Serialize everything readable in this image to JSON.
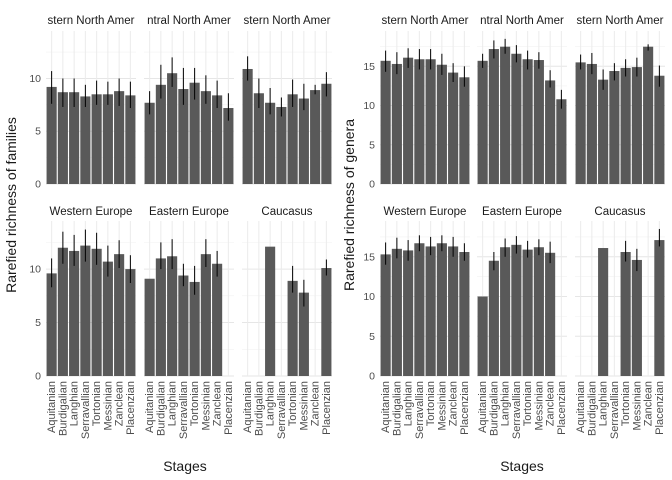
{
  "figure": {
    "xlabel": "Stages"
  },
  "chart_data": [
    {
      "type": "bar",
      "ylabel": "Rarefied richness of families",
      "ylim": [
        0,
        14.5
      ],
      "yticks": [
        0,
        5,
        10
      ],
      "grid": true,
      "categories": [
        "Aquitanian",
        "Burdigalian",
        "Langhian",
        "Serravallian",
        "Tortonian",
        "Messinian",
        "Zanclean",
        "Placenzian"
      ],
      "panels": [
        {
          "strip": "stern North Amer",
          "values": [
            9.2,
            8.7,
            8.7,
            8.3,
            8.5,
            8.5,
            8.8,
            8.4
          ],
          "error_low": [
            7.6,
            7.3,
            7.3,
            7.3,
            7.5,
            7.5,
            7.4,
            7.2
          ],
          "error_high": [
            10.7,
            10.0,
            10.0,
            9.4,
            9.8,
            9.7,
            10.0,
            9.7
          ]
        },
        {
          "strip": "ntral North Amer",
          "values": [
            7.7,
            9.4,
            10.5,
            9.0,
            9.6,
            8.8,
            8.4,
            7.2
          ],
          "error_low": [
            6.6,
            8.1,
            9.2,
            7.5,
            8.0,
            7.6,
            7.2,
            6.0
          ],
          "error_high": [
            8.8,
            11.3,
            12.0,
            11.0,
            11.0,
            10.3,
            9.8,
            8.6
          ]
        },
        {
          "strip": "stern North Amer",
          "values": [
            10.9,
            8.6,
            7.7,
            7.3,
            8.5,
            8.1,
            8.9,
            9.5
          ],
          "error_low": [
            9.8,
            7.2,
            6.6,
            6.4,
            7.3,
            7.0,
            8.5,
            8.3
          ],
          "error_high": [
            12.1,
            10.0,
            9.1,
            8.2,
            9.9,
            9.5,
            9.4,
            10.6
          ]
        },
        {
          "strip": "Western Europe",
          "values": [
            9.6,
            12.0,
            11.7,
            12.2,
            11.9,
            10.7,
            11.4,
            10.0
          ],
          "error_low": [
            8.3,
            10.5,
            10.3,
            10.7,
            10.4,
            9.3,
            10.1,
            8.7
          ],
          "error_high": [
            11.0,
            13.5,
            13.2,
            13.7,
            13.4,
            12.2,
            12.7,
            11.3
          ]
        },
        {
          "strip": "Eastern Europe",
          "values": [
            9.1,
            11.0,
            11.2,
            9.4,
            8.8,
            11.4,
            10.5,
            null
          ],
          "positions": [
            0,
            1,
            2,
            3,
            4,
            5,
            6,
            null
          ],
          "error_low": [
            null,
            10.0,
            10.0,
            8.4,
            7.6,
            10.2,
            9.3,
            null
          ],
          "error_high": [
            null,
            12.5,
            12.8,
            10.5,
            10.3,
            12.8,
            11.7,
            null
          ]
        },
        {
          "strip": "Caucasus",
          "values": [
            null,
            null,
            12.1,
            null,
            8.9,
            7.8,
            null,
            10.1
          ],
          "positions": [
            null,
            null,
            2,
            null,
            4,
            5,
            null,
            7
          ],
          "error_low": [
            null,
            null,
            null,
            null,
            7.8,
            6.5,
            null,
            9.4
          ],
          "error_high": [
            null,
            null,
            null,
            null,
            10.3,
            9.0,
            null,
            10.9
          ]
        }
      ]
    },
    {
      "type": "bar",
      "ylabel": "Rarefied richness of genera",
      "ylim": [
        0,
        19.5
      ],
      "yticks": [
        0,
        5,
        10,
        15
      ],
      "grid": true,
      "categories": [
        "Aquitanian",
        "Burdigalian",
        "Langhian",
        "Serravallian",
        "Tortonian",
        "Messinian",
        "Zanclean",
        "Placenzian"
      ],
      "panels": [
        {
          "strip": "stern North Amer",
          "values": [
            15.7,
            15.3,
            16.1,
            15.9,
            15.9,
            15.2,
            14.2,
            13.6
          ],
          "error_low": [
            14.3,
            14.0,
            14.8,
            14.6,
            14.6,
            13.9,
            13.0,
            12.4
          ],
          "error_high": [
            17.0,
            16.8,
            17.3,
            17.2,
            17.2,
            16.6,
            15.4,
            15.0
          ]
        },
        {
          "strip": "ntral North Amer",
          "values": [
            15.7,
            17.2,
            17.5,
            16.6,
            15.9,
            15.8,
            13.2,
            10.8
          ],
          "error_low": [
            14.8,
            16.0,
            16.6,
            15.5,
            14.6,
            14.7,
            12.3,
            9.6
          ],
          "error_high": [
            16.6,
            18.3,
            18.5,
            17.7,
            17.0,
            16.8,
            14.5,
            12.0
          ]
        },
        {
          "strip": "stern North Amer",
          "values": [
            15.5,
            15.3,
            13.3,
            14.4,
            14.8,
            14.9,
            17.5,
            13.8
          ],
          "error_low": [
            14.6,
            14.0,
            12.0,
            13.2,
            13.7,
            13.7,
            17.0,
            12.4
          ],
          "error_high": [
            16.5,
            16.7,
            14.6,
            15.4,
            15.9,
            16.1,
            17.8,
            15.1
          ]
        },
        {
          "strip": "Western Europe",
          "values": [
            15.3,
            16.0,
            15.8,
            16.7,
            16.3,
            16.7,
            16.3,
            15.6
          ],
          "error_low": [
            14.0,
            14.8,
            14.5,
            15.7,
            15.2,
            15.7,
            15.0,
            14.5
          ],
          "error_high": [
            16.8,
            17.4,
            17.1,
            17.7,
            17.5,
            17.7,
            17.5,
            16.7
          ]
        },
        {
          "strip": "Eastern Europe",
          "values": [
            10.0,
            14.5,
            16.2,
            16.5,
            15.9,
            16.2,
            15.5,
            null
          ],
          "positions": [
            0,
            1,
            2,
            3,
            4,
            5,
            6,
            null
          ],
          "error_low": [
            null,
            13.3,
            15.0,
            15.4,
            14.9,
            15.2,
            14.2,
            null
          ],
          "error_high": [
            null,
            15.6,
            17.3,
            17.6,
            17.0,
            17.2,
            16.9,
            null
          ]
        },
        {
          "strip": "Caucasus",
          "values": [
            null,
            null,
            16.1,
            null,
            15.6,
            14.6,
            null,
            17.1
          ],
          "positions": [
            null,
            null,
            2,
            null,
            4,
            5,
            null,
            7
          ],
          "error_low": [
            null,
            null,
            null,
            null,
            14.4,
            13.2,
            null,
            16.3
          ],
          "error_high": [
            null,
            null,
            null,
            null,
            17.0,
            16.0,
            null,
            18.5
          ]
        }
      ]
    }
  ]
}
